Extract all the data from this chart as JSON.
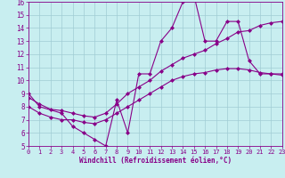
{
  "background_color": "#c8eef0",
  "grid_color": "#a0ccd4",
  "line_color": "#880088",
  "marker": "D",
  "markersize": 2,
  "linewidth": 0.8,
  "xlim": [
    0,
    23
  ],
  "ylim": [
    5,
    16
  ],
  "xticks": [
    0,
    1,
    2,
    3,
    4,
    5,
    6,
    7,
    8,
    9,
    10,
    11,
    12,
    13,
    14,
    15,
    16,
    17,
    18,
    19,
    20,
    21,
    22,
    23
  ],
  "yticks": [
    5,
    6,
    7,
    8,
    9,
    10,
    11,
    12,
    13,
    14,
    15,
    16
  ],
  "xlabel": "Windchill (Refroidissement éolien,°C)",
  "line1_x": [
    0,
    1,
    3,
    4,
    5,
    6,
    7,
    8,
    9,
    10,
    11,
    12,
    13,
    14,
    15,
    16,
    17,
    18,
    19,
    20,
    21,
    22,
    23
  ],
  "line1_y": [
    9.0,
    8.0,
    7.5,
    6.5,
    6.0,
    5.5,
    5.0,
    8.5,
    6.0,
    10.5,
    10.5,
    13.0,
    14.0,
    16.0,
    16.5,
    13.0,
    13.0,
    14.5,
    14.5,
    11.5,
    10.5,
    10.5,
    10.5
  ],
  "line2_x": [
    0,
    1,
    2,
    3,
    4,
    5,
    6,
    7,
    8,
    9,
    10,
    11,
    12,
    13,
    14,
    15,
    16,
    17,
    18,
    19,
    20,
    21,
    22,
    23
  ],
  "line2_y": [
    8.7,
    8.2,
    7.8,
    7.7,
    7.5,
    7.3,
    7.2,
    7.5,
    8.2,
    9.0,
    9.5,
    10.0,
    10.7,
    11.2,
    11.7,
    12.0,
    12.3,
    12.8,
    13.2,
    13.7,
    13.8,
    14.2,
    14.4,
    14.5
  ],
  "line3_x": [
    0,
    1,
    2,
    3,
    4,
    5,
    6,
    7,
    8,
    9,
    10,
    11,
    12,
    13,
    14,
    15,
    16,
    17,
    18,
    19,
    20,
    21,
    22,
    23
  ],
  "line3_y": [
    8.0,
    7.5,
    7.2,
    7.0,
    7.0,
    6.8,
    6.7,
    7.0,
    7.5,
    8.0,
    8.5,
    9.0,
    9.5,
    10.0,
    10.3,
    10.5,
    10.6,
    10.8,
    10.9,
    10.9,
    10.8,
    10.6,
    10.5,
    10.4
  ]
}
